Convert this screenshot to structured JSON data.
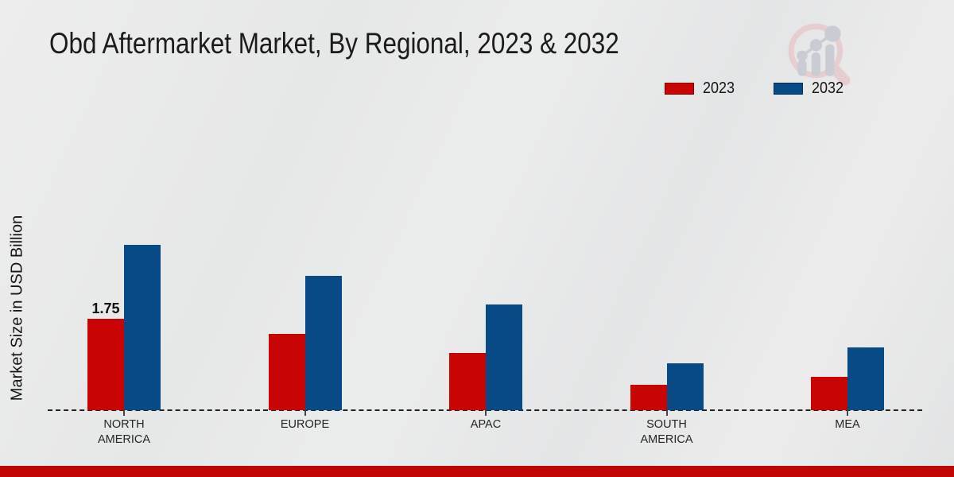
{
  "page": {
    "title": "Obd Aftermarket Market, By Regional, 2023 & 2032"
  },
  "y_axis": {
    "label": "Market Size in USD Billion"
  },
  "watermark": {
    "name": "market-research-magnifier-logo",
    "ring_color": "#e7cdd0",
    "glyph_color": "#c9ccd2"
  },
  "footer": {
    "bar_color": "#c00606"
  },
  "chart_data": {
    "type": "bar",
    "title": "Obd Aftermarket Market, By Regional, 2023 & 2032",
    "xlabel": "",
    "ylabel": "Market Size in USD Billion",
    "categories": [
      "NORTH AMERICA",
      "EUROPE",
      "APAC",
      "SOUTH AMERICA",
      "MEA"
    ],
    "series": [
      {
        "name": "2023",
        "color": "#c90404",
        "values": [
          1.75,
          1.46,
          1.1,
          0.49,
          0.64
        ],
        "value_labels": [
          "1.75",
          "",
          "",
          "",
          ""
        ]
      },
      {
        "name": "2032",
        "color": "#074a86",
        "values": [
          3.17,
          2.57,
          2.02,
          0.9,
          1.21
        ],
        "value_labels": [
          "",
          "",
          "",
          "",
          ""
        ]
      }
    ],
    "ylim": [
      0,
      3.5
    ],
    "grid": "off",
    "axis_style": "dashed-baseline-only",
    "legend_position": "top-right"
  }
}
